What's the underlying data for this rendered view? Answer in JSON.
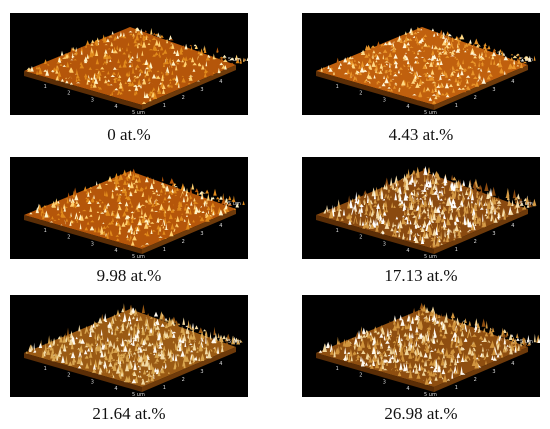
{
  "panels": [
    {
      "caption": "0 at.%",
      "base": "#b5560a",
      "mid": "#e08a1c",
      "high": "#ffd070",
      "peak": "#fff4c8",
      "density": 0.55,
      "roughness": 0.45
    },
    {
      "caption": "4.43 at.%",
      "base": "#c0600e",
      "mid": "#e8952a",
      "high": "#ffd985",
      "peak": "#fff6d8",
      "density": 0.7,
      "roughness": 0.35
    },
    {
      "caption": "9.98 at.%",
      "base": "#b5560a",
      "mid": "#e08a1c",
      "high": "#ffd070",
      "peak": "#fff4c8",
      "density": 0.65,
      "roughness": 0.5
    },
    {
      "caption": "17.13 at.%",
      "base": "#8a4a10",
      "mid": "#d49a45",
      "high": "#f6deab",
      "peak": "#ffffff",
      "density": 0.85,
      "roughness": 0.75
    },
    {
      "caption": "21.64 at.%",
      "base": "#9a5a14",
      "mid": "#d9a650",
      "high": "#f3dba5",
      "peak": "#fffaf0",
      "density": 0.75,
      "roughness": 0.7
    },
    {
      "caption": "26.98 at.%",
      "base": "#8e4e10",
      "mid": "#d1953e",
      "high": "#f1d59a",
      "peak": "#fffaf0",
      "density": 0.8,
      "roughness": 0.7
    }
  ],
  "axis_labels": {
    "unit": "5 um",
    "ticks_left": [
      "1",
      "2",
      "3",
      "4"
    ],
    "ticks_right": [
      "1",
      "2",
      "3",
      "4"
    ]
  }
}
